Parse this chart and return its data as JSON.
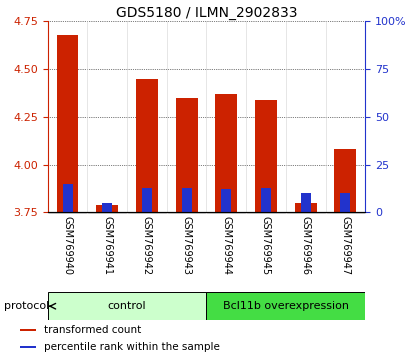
{
  "title": "GDS5180 / ILMN_2902833",
  "samples": [
    "GSM769940",
    "GSM769941",
    "GSM769942",
    "GSM769943",
    "GSM769944",
    "GSM769945",
    "GSM769946",
    "GSM769947"
  ],
  "transformed_counts": [
    4.68,
    3.79,
    4.45,
    4.35,
    4.37,
    4.34,
    3.8,
    4.08
  ],
  "percentile_ranks": [
    15.0,
    5.0,
    13.0,
    13.0,
    12.0,
    13.0,
    10.0,
    10.0
  ],
  "ylim_left": [
    3.75,
    4.75
  ],
  "ylim_right": [
    0,
    100
  ],
  "yticks_left": [
    3.75,
    4.0,
    4.25,
    4.5,
    4.75
  ],
  "yticks_right": [
    0,
    25,
    50,
    75,
    100
  ],
  "bar_bottom": 3.75,
  "bar_width": 0.55,
  "blue_bar_width": 0.25,
  "red_color": "#cc2200",
  "blue_color": "#2233cc",
  "groups": [
    {
      "label": "control",
      "indices": [
        0,
        1,
        2,
        3
      ],
      "color": "#ccffcc"
    },
    {
      "label": "Bcl11b overexpression",
      "indices": [
        4,
        5,
        6,
        7
      ],
      "color": "#44dd44"
    }
  ],
  "protocol_label": "protocol",
  "legend_items": [
    {
      "label": "transformed count",
      "color": "#cc2200"
    },
    {
      "label": "percentile rank within the sample",
      "color": "#2233cc"
    }
  ],
  "title_fontsize": 10,
  "sample_fontsize": 7,
  "legend_fontsize": 7.5,
  "protocol_fontsize": 8,
  "group_fontsize": 8,
  "background_color": "#ffffff",
  "xtick_bg": "#cccccc",
  "right_pct_labels": [
    "0",
    "25",
    "50",
    "75",
    "100%"
  ]
}
